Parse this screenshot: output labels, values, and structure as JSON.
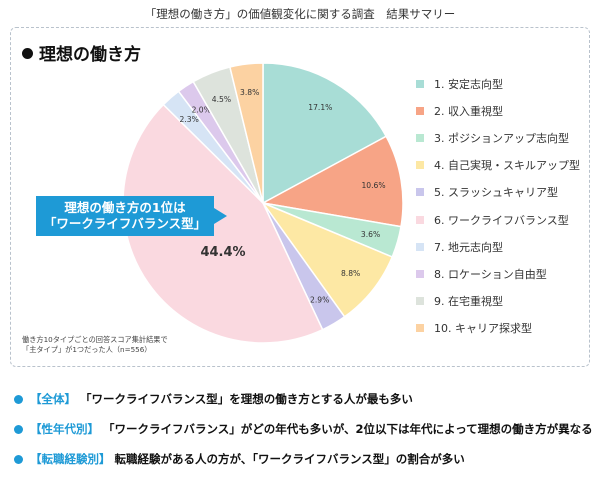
{
  "header": {
    "title": "「理想の働き方」の価値観変化に関する調査　結果サマリー"
  },
  "section": {
    "title": "理想の働き方"
  },
  "callout": {
    "line1": "理想の働き方の1位は",
    "line2": "「ワークライフバランス型」"
  },
  "note": {
    "line1": "働き方10タイプごとの回答スコア集計結果で",
    "line2": "「主タイプ」が1つだった人（n=556）"
  },
  "chart_data": {
    "type": "pie",
    "start_angle_deg": 0,
    "direction": "clockwise",
    "slices": [
      {
        "label": "1. 安定志向型",
        "value": 17.1,
        "display": "17.1%",
        "color": "#a8ddd6"
      },
      {
        "label": "2. 収入重視型",
        "value": 10.6,
        "display": "10.6%",
        "color": "#f7a486"
      },
      {
        "label": "3. ポジションアップ志向型",
        "value": 3.6,
        "display": "3.6%",
        "color": "#b9e8d2"
      },
      {
        "label": "4. 自己実現・スキルアップ型",
        "value": 8.8,
        "display": "8.8%",
        "color": "#fde8a4"
      },
      {
        "label": "5. スラッシュキャリア型",
        "value": 2.9,
        "display": "2.9%",
        "color": "#c9c6ec"
      },
      {
        "label": "6. ワークライフバランス型",
        "value": 44.4,
        "display": "44.4%",
        "color": "#fad9e0"
      },
      {
        "label": "7. 地元志向型",
        "value": 2.3,
        "display": "2.3%",
        "color": "#d6e4f5"
      },
      {
        "label": "8. ロケーション自由型",
        "value": 2.0,
        "display": "2.0%",
        "color": "#dcc9ec"
      },
      {
        "label": "9. 在宅重視型",
        "value": 4.5,
        "display": "4.5%",
        "color": "#dde3dc"
      },
      {
        "label": "10. キャリア探求型",
        "value": 3.8,
        "display": "3.8%",
        "color": "#fcd2a2"
      }
    ]
  },
  "summary": [
    {
      "tag": "【全体】",
      "text": "「ワークライフバランス型」を理想の働き方とする人が最も多い"
    },
    {
      "tag": "【性年代別】",
      "text": "「ワークライフバランス」がどの年代も多いが、2位以下は年代によって理想の働き方が異なる"
    },
    {
      "tag": "【転職経験別】",
      "text": "転職経験がある人の方が、「ワークライフバランス型」の割合が多い"
    }
  ]
}
